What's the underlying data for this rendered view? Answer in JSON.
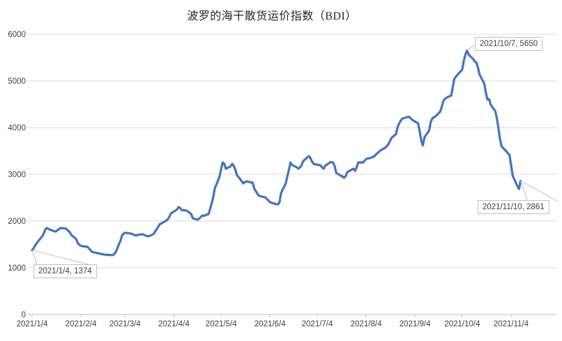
{
  "title": "波罗的海干散货运价指数（BDI）",
  "chart_data": {
    "type": "line",
    "title": "波罗的海干散货运价指数（BDI）",
    "series_name": "BDI",
    "line_color": "#4472C4",
    "grid_color": "#D9D9D9",
    "axis_line_color": "#BFBFBF",
    "axis_text_color": "#404040",
    "grid": true,
    "legend_position": "none",
    "ylim": [
      0,
      6000
    ],
    "y_ticks": [
      "0",
      "1000",
      "2000",
      "3000",
      "4000",
      "5000",
      "6000"
    ],
    "x_tick_labels": [
      "2021/1/4",
      "2021/2/4",
      "2021/3/4",
      "2021/4/4",
      "2021/5/4",
      "2021/6/4",
      "2021/7/4",
      "2021/8/4",
      "2021/9/4",
      "2021/10/4",
      "2021/11/4"
    ],
    "points": [
      [
        "1/4",
        1374
      ],
      [
        "1/5",
        1420
      ],
      [
        "1/6",
        1480
      ],
      [
        "1/7",
        1530
      ],
      [
        "1/8",
        1570
      ],
      [
        "1/11",
        1700
      ],
      [
        "1/12",
        1790
      ],
      [
        "1/13",
        1850
      ],
      [
        "1/14",
        1840
      ],
      [
        "1/15",
        1820
      ],
      [
        "1/18",
        1785
      ],
      [
        "1/19",
        1775
      ],
      [
        "1/20",
        1800
      ],
      [
        "1/21",
        1830
      ],
      [
        "1/22",
        1850
      ],
      [
        "1/25",
        1845
      ],
      [
        "1/26",
        1825
      ],
      [
        "1/27",
        1790
      ],
      [
        "1/28",
        1760
      ],
      [
        "1/29",
        1700
      ],
      [
        "2/1",
        1615
      ],
      [
        "2/2",
        1530
      ],
      [
        "2/3",
        1490
      ],
      [
        "2/4",
        1470
      ],
      [
        "2/5",
        1460
      ],
      [
        "2/8",
        1450
      ],
      [
        "2/9",
        1420
      ],
      [
        "2/10",
        1380
      ],
      [
        "2/11",
        1340
      ],
      [
        "2/15",
        1310
      ],
      [
        "2/17",
        1295
      ],
      [
        "2/19",
        1280
      ],
      [
        "2/22",
        1275
      ],
      [
        "2/24",
        1270
      ],
      [
        "2/25",
        1285
      ],
      [
        "2/26",
        1330
      ],
      [
        "3/1",
        1570
      ],
      [
        "3/2",
        1680
      ],
      [
        "3/3",
        1730
      ],
      [
        "3/4",
        1750
      ],
      [
        "3/5",
        1745
      ],
      [
        "3/8",
        1730
      ],
      [
        "3/9",
        1715
      ],
      [
        "3/10",
        1700
      ],
      [
        "3/11",
        1690
      ],
      [
        "3/12",
        1705
      ],
      [
        "3/15",
        1720
      ],
      [
        "3/16",
        1705
      ],
      [
        "3/17",
        1690
      ],
      [
        "3/18",
        1680
      ],
      [
        "3/19",
        1675
      ],
      [
        "3/22",
        1720
      ],
      [
        "3/23",
        1770
      ],
      [
        "3/24",
        1820
      ],
      [
        "3/25",
        1875
      ],
      [
        "3/26",
        1930
      ],
      [
        "3/29",
        1985
      ],
      [
        "3/30",
        2010
      ],
      [
        "3/31",
        2030
      ],
      [
        "4/1",
        2080
      ],
      [
        "4/2",
        2160
      ],
      [
        "4/6",
        2250
      ],
      [
        "4/7",
        2300
      ],
      [
        "4/8",
        2280
      ],
      [
        "4/9",
        2235
      ],
      [
        "4/12",
        2225
      ],
      [
        "4/13",
        2200
      ],
      [
        "4/14",
        2180
      ],
      [
        "4/15",
        2150
      ],
      [
        "4/16",
        2060
      ],
      [
        "4/19",
        2030
      ],
      [
        "4/20",
        2050
      ],
      [
        "4/21",
        2080
      ],
      [
        "4/22",
        2120
      ],
      [
        "4/23",
        2110
      ],
      [
        "4/26",
        2150
      ],
      [
        "4/27",
        2260
      ],
      [
        "4/28",
        2380
      ],
      [
        "4/29",
        2520
      ],
      [
        "4/30",
        2700
      ],
      [
        "5/3",
        2950
      ],
      [
        "5/4",
        3120
      ],
      [
        "5/5",
        3254
      ],
      [
        "5/6",
        3225
      ],
      [
        "5/7",
        3119
      ],
      [
        "5/10",
        3170
      ],
      [
        "5/11",
        3224
      ],
      [
        "5/12",
        3180
      ],
      [
        "5/13",
        3100
      ],
      [
        "5/14",
        2985
      ],
      [
        "5/17",
        2855
      ],
      [
        "5/18",
        2806
      ],
      [
        "5/19",
        2830
      ],
      [
        "5/20",
        2851
      ],
      [
        "5/21",
        2840
      ],
      [
        "5/24",
        2821
      ],
      [
        "5/25",
        2700
      ],
      [
        "5/26",
        2640
      ],
      [
        "5/27",
        2582
      ],
      [
        "5/28",
        2540
      ],
      [
        "6/1",
        2507
      ],
      [
        "6/2",
        2470
      ],
      [
        "6/3",
        2440
      ],
      [
        "6/4",
        2403
      ],
      [
        "6/7",
        2370
      ],
      [
        "6/8",
        2358
      ],
      [
        "6/9",
        2360
      ],
      [
        "6/10",
        2400
      ],
      [
        "6/11",
        2600
      ],
      [
        "6/14",
        2806
      ],
      [
        "6/15",
        2955
      ],
      [
        "6/16",
        3100
      ],
      [
        "6/17",
        3254
      ],
      [
        "6/18",
        3200
      ],
      [
        "6/21",
        3149
      ],
      [
        "6/22",
        3119
      ],
      [
        "6/23",
        3150
      ],
      [
        "6/24",
        3194
      ],
      [
        "6/25",
        3280
      ],
      [
        "6/28",
        3373
      ],
      [
        "6/29",
        3388
      ],
      [
        "6/30",
        3320
      ],
      [
        "7/1",
        3254
      ],
      [
        "7/2",
        3220
      ],
      [
        "7/6",
        3194
      ],
      [
        "7/7",
        3150
      ],
      [
        "7/8",
        3119
      ],
      [
        "7/9",
        3180
      ],
      [
        "7/12",
        3254
      ],
      [
        "7/13",
        3260
      ],
      [
        "7/14",
        3254
      ],
      [
        "7/15",
        3179
      ],
      [
        "7/16",
        3030
      ],
      [
        "7/19",
        2970
      ],
      [
        "7/20",
        2955
      ],
      [
        "7/21",
        2925
      ],
      [
        "7/22",
        2960
      ],
      [
        "7/23",
        3045
      ],
      [
        "7/26",
        3104
      ],
      [
        "7/27",
        3119
      ],
      [
        "7/28",
        3075
      ],
      [
        "7/29",
        3150
      ],
      [
        "7/30",
        3254
      ],
      [
        "8/2",
        3254
      ],
      [
        "8/3",
        3290
      ],
      [
        "8/4",
        3328
      ],
      [
        "8/5",
        3340
      ],
      [
        "8/6",
        3343
      ],
      [
        "8/9",
        3380
      ],
      [
        "8/10",
        3418
      ],
      [
        "8/11",
        3448
      ],
      [
        "8/12",
        3478
      ],
      [
        "8/13",
        3510
      ],
      [
        "8/16",
        3567
      ],
      [
        "8/17",
        3600
      ],
      [
        "8/18",
        3642
      ],
      [
        "8/19",
        3700
      ],
      [
        "8/20",
        3776
      ],
      [
        "8/23",
        3866
      ],
      [
        "8/24",
        4015
      ],
      [
        "8/25",
        4090
      ],
      [
        "8/26",
        4150
      ],
      [
        "8/27",
        4194
      ],
      [
        "8/30",
        4224
      ],
      [
        "8/31",
        4235
      ],
      [
        "9/1",
        4209
      ],
      [
        "9/2",
        4175
      ],
      [
        "9/3",
        4149
      ],
      [
        "9/6",
        4090
      ],
      [
        "9/7",
        3925
      ],
      [
        "9/8",
        3716
      ],
      [
        "9/9",
        3619
      ],
      [
        "9/10",
        3791
      ],
      [
        "9/13",
        3940
      ],
      [
        "9/14",
        4119
      ],
      [
        "9/15",
        4194
      ],
      [
        "9/16",
        4224
      ],
      [
        "9/17",
        4239
      ],
      [
        "9/20",
        4343
      ],
      [
        "9/21",
        4448
      ],
      [
        "9/22",
        4567
      ],
      [
        "9/23",
        4612
      ],
      [
        "9/24",
        4642
      ],
      [
        "9/27",
        4687
      ],
      [
        "9/28",
        4866
      ],
      [
        "9/29",
        5045
      ],
      [
        "9/30",
        5090
      ],
      [
        "10/1",
        5134
      ],
      [
        "10/4",
        5239
      ],
      [
        "10/5",
        5433
      ],
      [
        "10/6",
        5563
      ],
      [
        "10/7",
        5650
      ],
      [
        "10/8",
        5567
      ],
      [
        "10/11",
        5463
      ],
      [
        "10/12",
        5418
      ],
      [
        "10/13",
        5388
      ],
      [
        "10/14",
        5284
      ],
      [
        "10/15",
        5134
      ],
      [
        "10/18",
        4940
      ],
      [
        "10/19",
        4746
      ],
      [
        "10/20",
        4597
      ],
      [
        "10/21",
        4610
      ],
      [
        "10/22",
        4493
      ],
      [
        "10/25",
        4350
      ],
      [
        "10/26",
        4190
      ],
      [
        "10/27",
        3980
      ],
      [
        "10/28",
        3746
      ],
      [
        "10/29",
        3597
      ],
      [
        "11/1",
        3493
      ],
      [
        "11/2",
        3448
      ],
      [
        "11/3",
        3418
      ],
      [
        "11/4",
        3194
      ],
      [
        "11/5",
        2970
      ],
      [
        "11/8",
        2746
      ],
      [
        "11/9",
        2687
      ],
      [
        "11/10",
        2861
      ]
    ],
    "annotations": [
      {
        "label": "2021/1/4, 1374",
        "date": "1/4",
        "value": 1374
      },
      {
        "label": "2021/10/7, 5650",
        "date": "10/7",
        "value": 5650
      },
      {
        "label": "2021/11/10, 2861",
        "date": "11/10",
        "value": 2861
      }
    ]
  }
}
